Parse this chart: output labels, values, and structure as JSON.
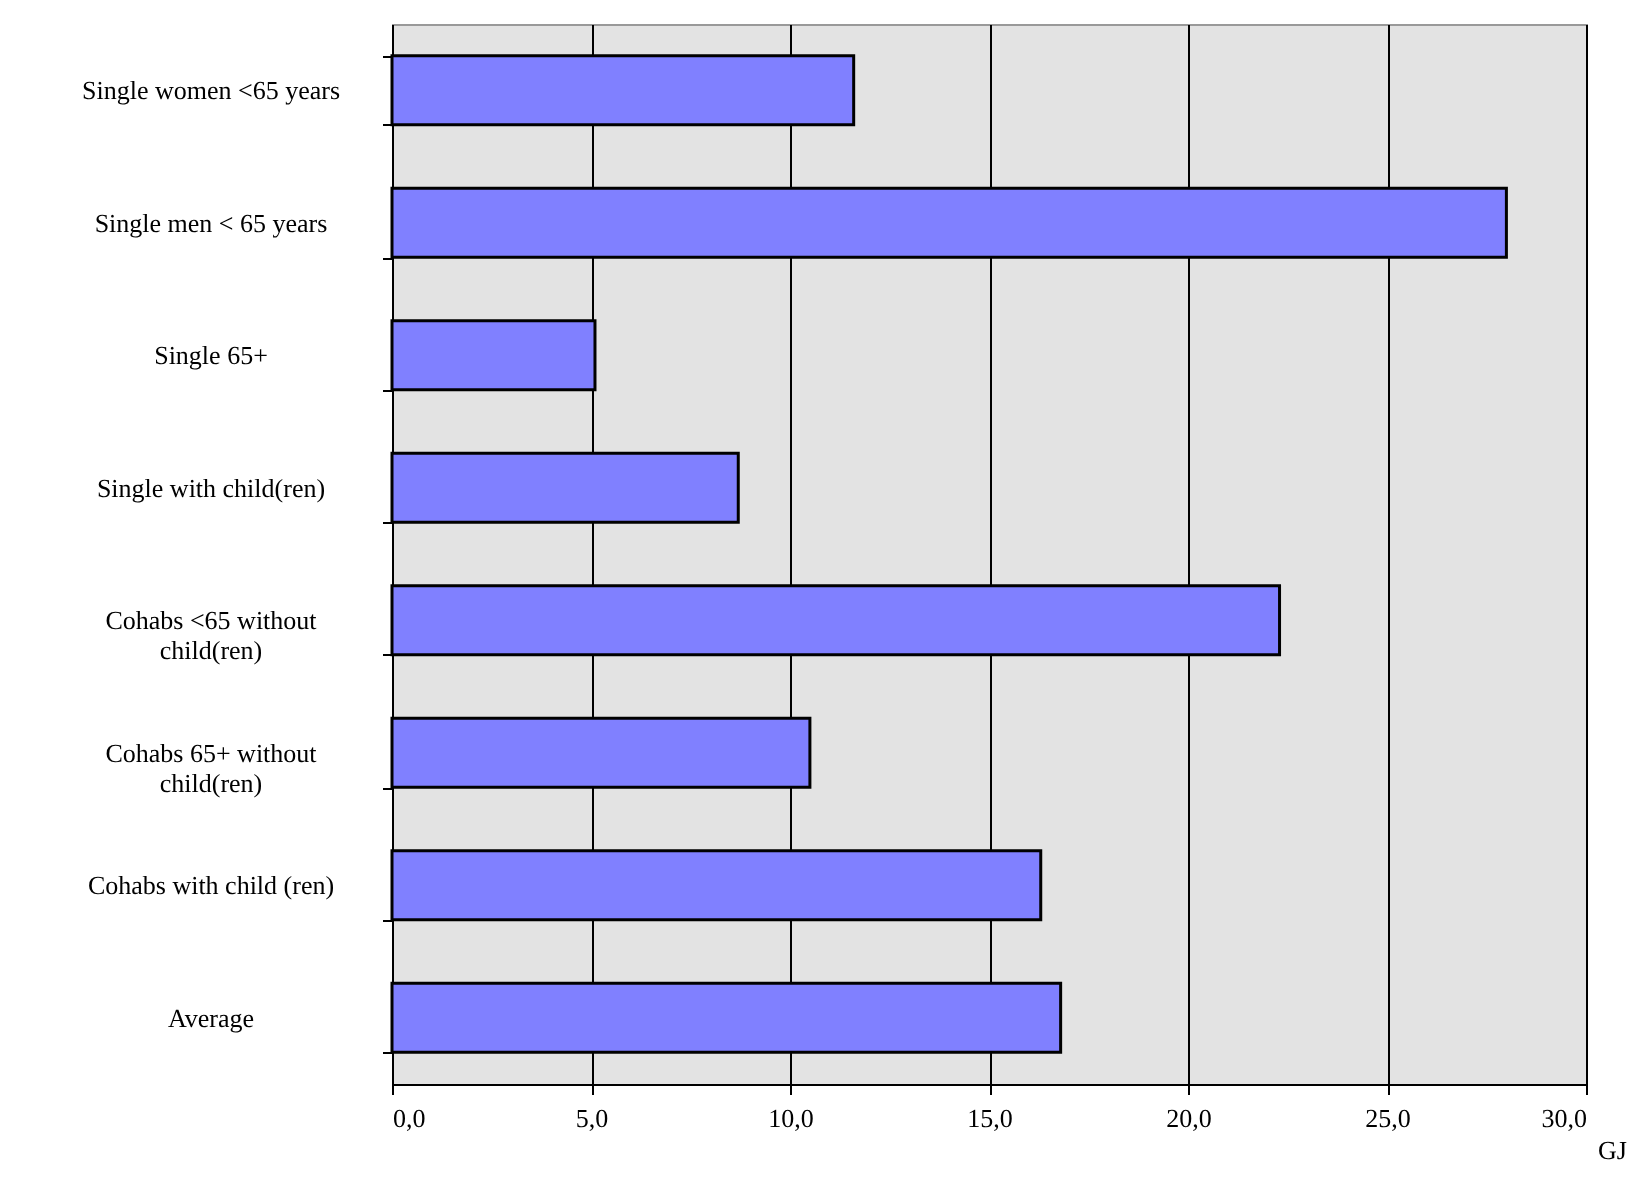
{
  "chart_data": {
    "type": "bar",
    "orientation": "horizontal",
    "categories": [
      "Single women <65 years",
      "Single men < 65 years",
      "Single 65+",
      "Single with child(ren)",
      "Cohabs <65 without child(ren)",
      "Cohabs 65+ without child(ren)",
      "Cohabs with child (ren)",
      "Average"
    ],
    "values": [
      11.6,
      28.0,
      5.1,
      8.7,
      22.3,
      10.5,
      16.3,
      16.8
    ],
    "color": "#8080ff",
    "xlabel": "GJ",
    "xlim": [
      0,
      30
    ],
    "xticks": [
      {
        "value": 0,
        "label": "0,0"
      },
      {
        "value": 5,
        "label": "5,0"
      },
      {
        "value": 10,
        "label": "10,0"
      },
      {
        "value": 15,
        "label": "15,0"
      },
      {
        "value": 20,
        "label": "20,0"
      },
      {
        "value": 25,
        "label": "25,0"
      },
      {
        "value": 30,
        "label": "30,0"
      }
    ],
    "grid": "x"
  }
}
